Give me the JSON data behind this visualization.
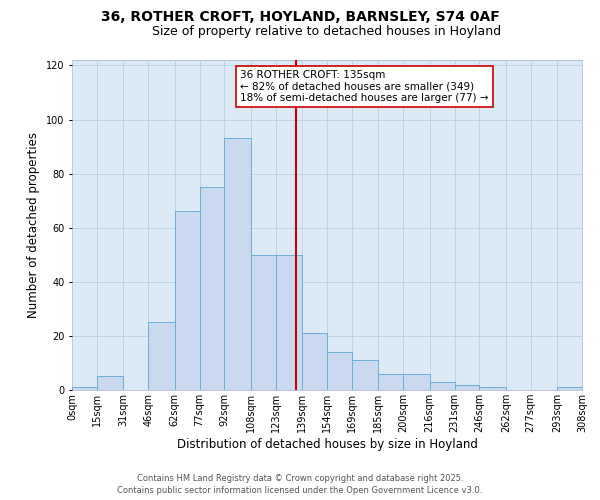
{
  "title": "36, ROTHER CROFT, HOYLAND, BARNSLEY, S74 0AF",
  "subtitle": "Size of property relative to detached houses in Hoyland",
  "xlabel": "Distribution of detached houses by size in Hoyland",
  "ylabel": "Number of detached properties",
  "bin_labels": [
    "0sqm",
    "15sqm",
    "31sqm",
    "46sqm",
    "62sqm",
    "77sqm",
    "92sqm",
    "108sqm",
    "123sqm",
    "139sqm",
    "154sqm",
    "169sqm",
    "185sqm",
    "200sqm",
    "216sqm",
    "231sqm",
    "246sqm",
    "262sqm",
    "277sqm",
    "293sqm",
    "308sqm"
  ],
  "bin_edges": [
    0,
    15,
    31,
    46,
    62,
    77,
    92,
    108,
    123,
    139,
    154,
    169,
    185,
    200,
    216,
    231,
    246,
    262,
    277,
    293,
    308
  ],
  "bar_heights": [
    1,
    5,
    0,
    25,
    66,
    75,
    93,
    50,
    50,
    21,
    14,
    11,
    6,
    6,
    3,
    2,
    1,
    0,
    0,
    1
  ],
  "bar_color": "#c9d9f0",
  "bar_edge_color": "#6baed6",
  "property_value": 135,
  "vline_color": "#cc0000",
  "annotation_title": "36 ROTHER CROFT: 135sqm",
  "annotation_line1": "← 82% of detached houses are smaller (349)",
  "annotation_line2": "18% of semi-detached houses are larger (77) →",
  "annotation_box_facecolor": "#ffffff",
  "annotation_box_edgecolor": "#cc0000",
  "ylim": [
    0,
    122
  ],
  "yticks": [
    0,
    20,
    40,
    60,
    80,
    100,
    120
  ],
  "footer1": "Contains HM Land Registry data © Crown copyright and database right 2025.",
  "footer2": "Contains public sector information licensed under the Open Government Licence v3.0.",
  "fig_bg_color": "#ffffff",
  "plot_bg_color": "#dce9f7",
  "grid_color": "#b8cfe8",
  "title_fontsize": 10,
  "subtitle_fontsize": 9,
  "axis_label_fontsize": 8.5,
  "tick_fontsize": 7,
  "annotation_fontsize": 7.5,
  "footer_fontsize": 6
}
